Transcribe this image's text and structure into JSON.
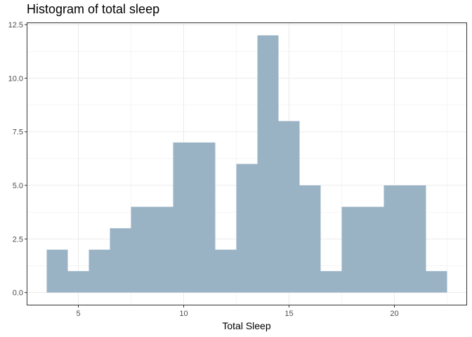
{
  "chart_data": {
    "type": "bar",
    "title": "Histogram of total sleep",
    "xlabel": "Total Sleep",
    "ylabel": "",
    "bin_width": 1,
    "bins": [
      {
        "x_start": 3.5,
        "x_end": 4.5,
        "count": 2
      },
      {
        "x_start": 4.5,
        "x_end": 5.5,
        "count": 1
      },
      {
        "x_start": 5.5,
        "x_end": 6.5,
        "count": 2
      },
      {
        "x_start": 6.5,
        "x_end": 7.5,
        "count": 3
      },
      {
        "x_start": 7.5,
        "x_end": 8.5,
        "count": 4
      },
      {
        "x_start": 8.5,
        "x_end": 9.5,
        "count": 4
      },
      {
        "x_start": 9.5,
        "x_end": 10.5,
        "count": 7
      },
      {
        "x_start": 10.5,
        "x_end": 11.5,
        "count": 7
      },
      {
        "x_start": 11.5,
        "x_end": 12.5,
        "count": 2
      },
      {
        "x_start": 12.5,
        "x_end": 13.5,
        "count": 6
      },
      {
        "x_start": 13.5,
        "x_end": 14.5,
        "count": 12
      },
      {
        "x_start": 14.5,
        "x_end": 15.5,
        "count": 8
      },
      {
        "x_start": 15.5,
        "x_end": 16.5,
        "count": 5
      },
      {
        "x_start": 16.5,
        "x_end": 17.5,
        "count": 1
      },
      {
        "x_start": 17.5,
        "x_end": 18.5,
        "count": 4
      },
      {
        "x_start": 18.5,
        "x_end": 19.5,
        "count": 4
      },
      {
        "x_start": 19.5,
        "x_end": 20.5,
        "count": 5
      },
      {
        "x_start": 20.5,
        "x_end": 21.5,
        "count": 5
      },
      {
        "x_start": 21.5,
        "x_end": 22.5,
        "count": 1
      }
    ],
    "xlim": [
      2.55,
      23.45
    ],
    "ylim": [
      -0.6,
      12.6
    ],
    "x_ticks": [
      5,
      10,
      15,
      20
    ],
    "x_tick_labels": [
      "5",
      "10",
      "15",
      "20"
    ],
    "y_ticks": [
      0,
      2.5,
      5,
      7.5,
      10,
      12.5
    ],
    "y_tick_labels": [
      "0.0",
      "2.5",
      "5.0",
      "7.5",
      "10.0",
      "12.5"
    ],
    "grid": true,
    "bar_color": "#99b3c5",
    "grid_color": "#ebebeb",
    "panel_border_color": "#333333"
  }
}
